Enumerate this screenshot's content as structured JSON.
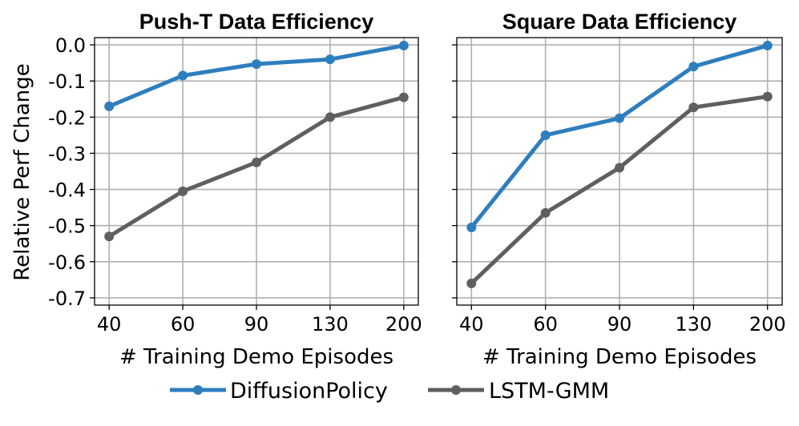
{
  "chart_data": [
    {
      "type": "line",
      "title": "Push-T Data Efficiency",
      "xlabel": "# Training Demo Episodes",
      "ylabel": "Relative Perf Change",
      "categories": [
        "40",
        "60",
        "90",
        "130",
        "200"
      ],
      "yticks": [
        "0.0",
        "-0.1",
        "-0.2",
        "-0.3",
        "-0.4",
        "-0.5",
        "-0.6",
        "-0.7"
      ],
      "ylim": [
        -0.72,
        0.02
      ],
      "grid": true,
      "series": [
        {
          "name": "DiffusionPolicy",
          "color": "#2e7ebf",
          "values": [
            -0.17,
            -0.085,
            -0.053,
            -0.04,
            -0.002
          ]
        },
        {
          "name": "LSTM-GMM",
          "color": "#5f5f5f",
          "values": [
            -0.53,
            -0.405,
            -0.325,
            -0.2,
            -0.145
          ]
        }
      ]
    },
    {
      "type": "line",
      "title": "Square Data Efficiency",
      "xlabel": "# Training Demo Episodes",
      "ylabel": "",
      "categories": [
        "40",
        "60",
        "90",
        "130",
        "200"
      ],
      "yticks": [
        "0.0",
        "-0.1",
        "-0.2",
        "-0.3",
        "-0.4",
        "-0.5",
        "-0.6",
        "-0.7"
      ],
      "ylim": [
        -0.72,
        0.02
      ],
      "grid": true,
      "series": [
        {
          "name": "DiffusionPolicy",
          "color": "#2e7ebf",
          "values": [
            -0.505,
            -0.25,
            -0.203,
            -0.06,
            -0.002
          ]
        },
        {
          "name": "LSTM-GMM",
          "color": "#5f5f5f",
          "values": [
            -0.66,
            -0.465,
            -0.34,
            -0.173,
            -0.143
          ]
        }
      ]
    }
  ],
  "legend": {
    "placement": "bottom-center",
    "items": [
      {
        "label": "DiffusionPolicy",
        "color": "#2e7ebf"
      },
      {
        "label": "LSTM-GMM",
        "color": "#5f5f5f"
      }
    ]
  }
}
